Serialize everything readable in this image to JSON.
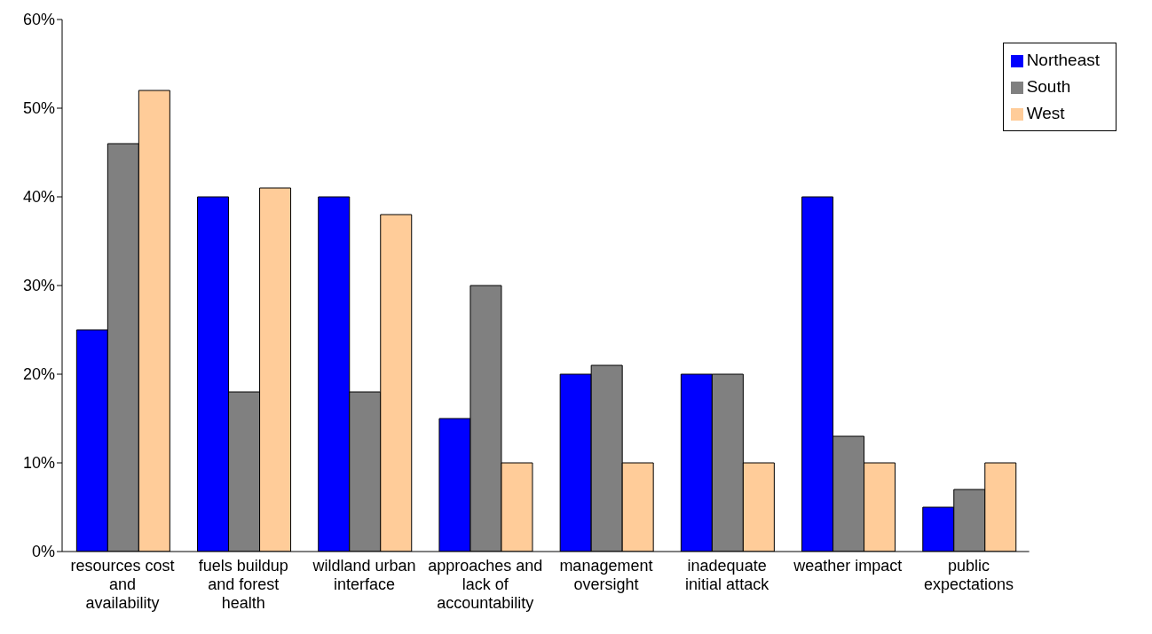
{
  "chart_data": {
    "type": "bar",
    "categories": [
      "resources cost and availability",
      "fuels buildup and forest health",
      "wildland urban interface",
      "approaches and lack of accountability",
      "management oversight",
      "inadequate initial attack",
      "weather impact",
      "public expectations"
    ],
    "series": [
      {
        "name": "Northeast",
        "color": "#0000ff",
        "values": [
          25,
          40,
          40,
          15,
          20,
          20,
          40,
          5
        ]
      },
      {
        "name": "South",
        "color": "#808080",
        "values": [
          46,
          18,
          18,
          30,
          21,
          20,
          13,
          7
        ]
      },
      {
        "name": "West",
        "color": "#ffcc99",
        "values": [
          52,
          41,
          38,
          10,
          10,
          10,
          10,
          10
        ]
      }
    ],
    "ylim": [
      0,
      60
    ],
    "yticks": [
      {
        "value": 0,
        "label": "0%"
      },
      {
        "value": 10,
        "label": "10%"
      },
      {
        "value": 20,
        "label": "20%"
      },
      {
        "value": 30,
        "label": "30%"
      },
      {
        "value": 40,
        "label": "40%"
      },
      {
        "value": 50,
        "label": "50%"
      },
      {
        "value": 60,
        "label": "60%"
      }
    ],
    "grid": false,
    "legend": "top right"
  }
}
